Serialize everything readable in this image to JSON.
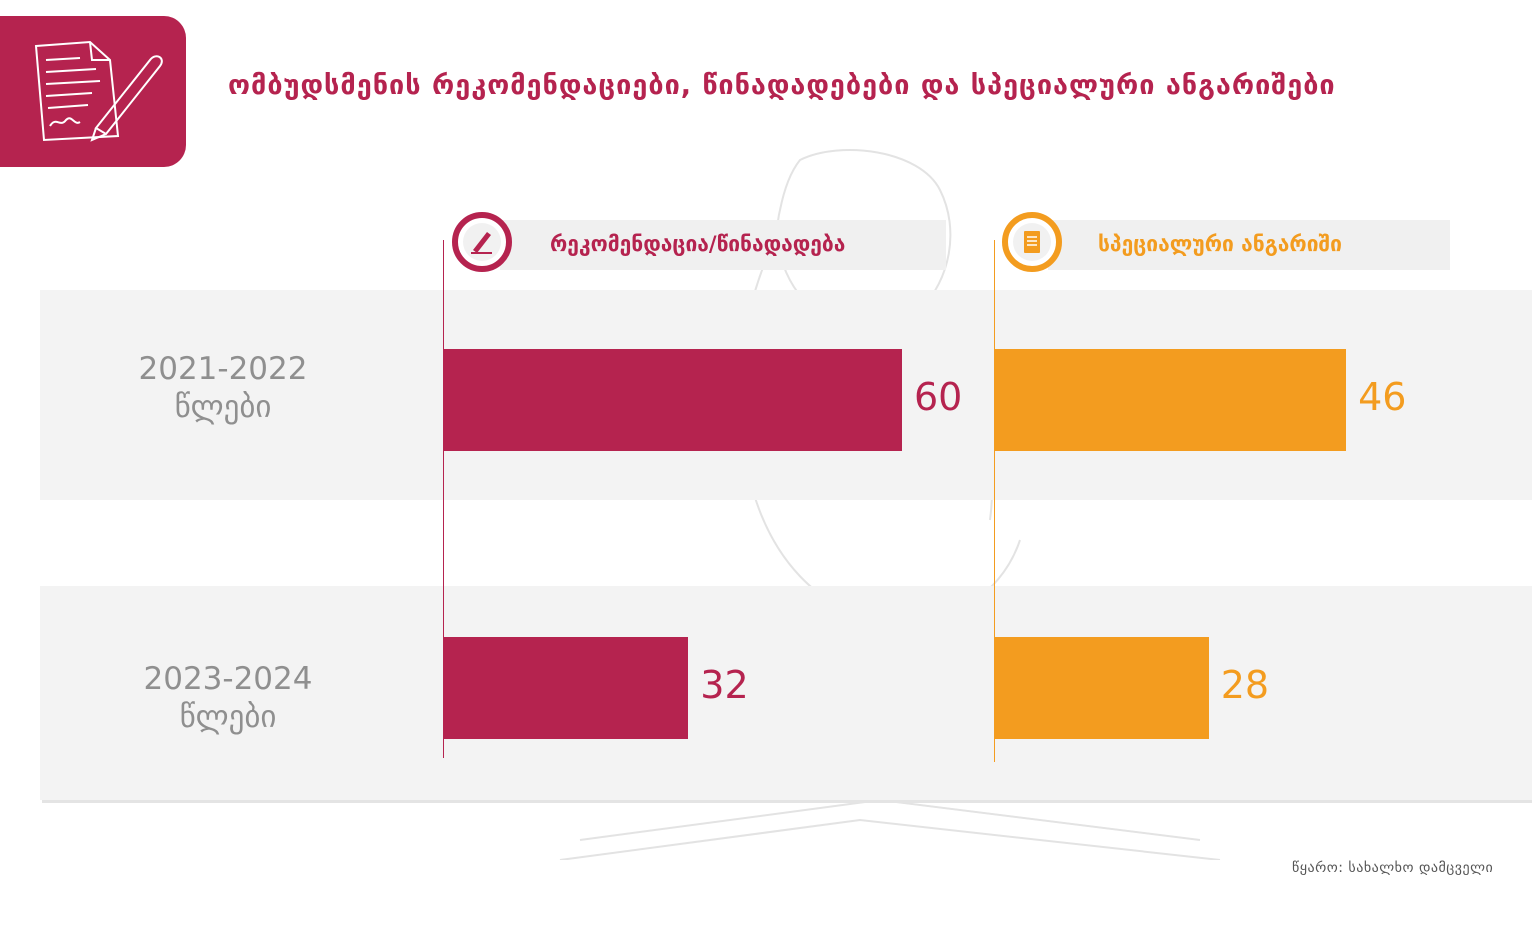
{
  "title": "ომბუდსმენის რეკომენდაციები, წინადადებები და სპეციალური ანგარიშები",
  "colors": {
    "recommendation": "#b5234f",
    "special": "#f39c1f",
    "year_text": "#8f8f8f"
  },
  "icons": {
    "header_logo": "document-pen-icon",
    "recommendation": "pen-icon",
    "special": "document-icon"
  },
  "source": "წყარო: სახალხო დამცველი",
  "chart_data": {
    "type": "bar",
    "orientation": "horizontal",
    "categories": [
      {
        "years": "2021-2022",
        "unit": "წლები"
      },
      {
        "years": "2023-2024",
        "unit": "წლები"
      }
    ],
    "series": [
      {
        "name": "რეკომენდაცია/წინადადება",
        "values": [
          60,
          32
        ],
        "labels": [
          "60",
          "32"
        ]
      },
      {
        "name": "სპეციალური ანგარიში",
        "values": [
          46,
          28
        ],
        "labels": [
          "46",
          "28"
        ]
      }
    ],
    "xlim": [
      0,
      60
    ],
    "grid": false,
    "legend": "top"
  }
}
